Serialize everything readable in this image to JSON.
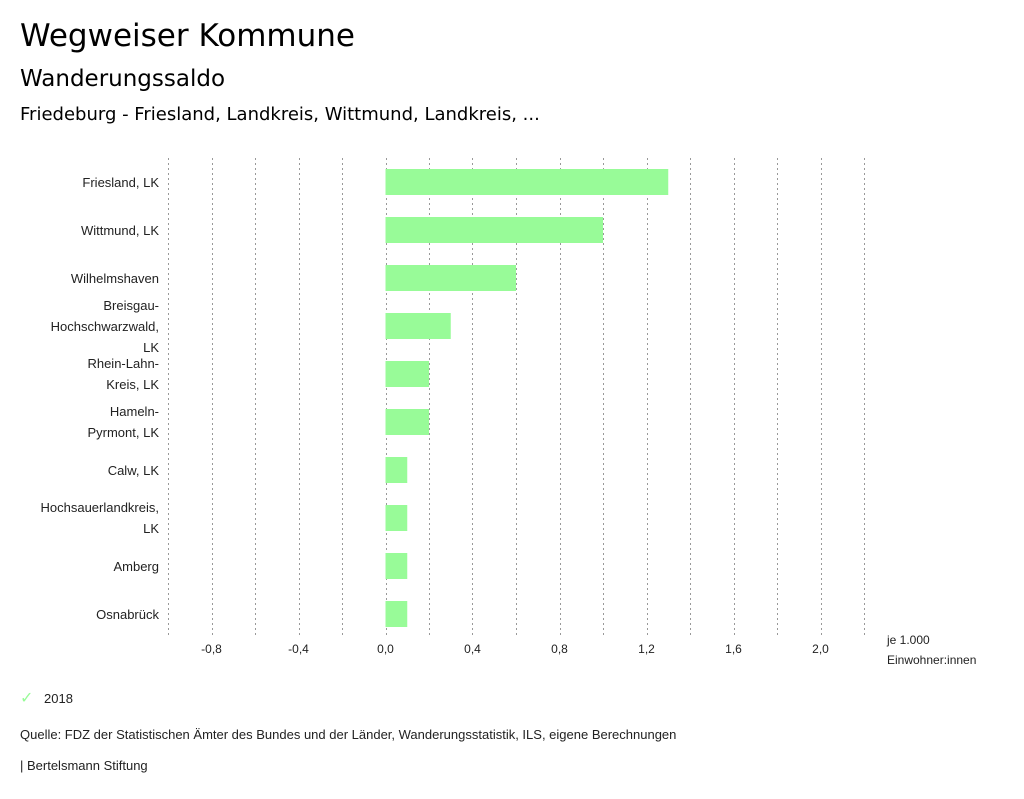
{
  "header": {
    "title": "Wegweiser Kommune",
    "subtitle": "Wanderungssaldo",
    "region": "Friedeburg - Friesland, Landkreis, Wittmund, Landkreis, ..."
  },
  "chart_data": {
    "type": "bar",
    "orientation": "horizontal",
    "categories": [
      "Friesland, LK",
      "Wittmund, LK",
      "Wilhelmshaven",
      "Breisgau-Hochschwarzwald, LK",
      "Rhein-Lahn-Kreis, LK",
      "Hameln-Pyrmont, LK",
      "Calw, LK",
      "Hochsauerlandkreis, LK",
      "Amberg",
      "Osnabrück"
    ],
    "category_lines": [
      [
        "Friesland, LK"
      ],
      [
        "Wittmund, LK"
      ],
      [
        "Wilhelmshaven"
      ],
      [
        "Breisgau-",
        "Hochschwarzwald,",
        "LK"
      ],
      [
        "Rhein-Lahn-",
        "Kreis, LK"
      ],
      [
        "Hameln-",
        "Pyrmont, LK"
      ],
      [
        "Calw, LK"
      ],
      [
        "Hochsauerlandkreis,",
        "LK"
      ],
      [
        "Amberg"
      ],
      [
        "Osnabrück"
      ]
    ],
    "series": [
      {
        "name": "2018",
        "values": [
          1.3,
          1.0,
          0.6,
          0.3,
          0.2,
          0.2,
          0.1,
          0.1,
          0.1,
          0.1
        ]
      }
    ],
    "xlim": [
      -1.0,
      2.2
    ],
    "ticks": [
      -0.8,
      -0.4,
      0.0,
      0.4,
      0.8,
      1.2,
      1.6,
      2.0
    ],
    "tick_labels": [
      "-0,8",
      "-0,4",
      "0,0",
      "0,4",
      "0,8",
      "1,2",
      "1,6",
      "2,0"
    ],
    "gridlines": [
      -1.0,
      -0.8,
      -0.6,
      -0.4,
      -0.2,
      0.0,
      0.2,
      0.4,
      0.6,
      0.8,
      1.0,
      1.2,
      1.4,
      1.6,
      1.8,
      2.0,
      2.2
    ],
    "xlabel_line1": "je 1.000",
    "xlabel_line2": "Einwohner:innen",
    "bar_color": "#98fb98",
    "grid": true
  },
  "legend": {
    "label": "2018",
    "icon": "check-icon"
  },
  "footer": {
    "source": "Quelle: FDZ der Statistischen Ämter des Bundes und der Länder, Wanderungsstatistik, ILS, eigene Berechnungen",
    "brand": "| Bertelsmann Stiftung"
  }
}
